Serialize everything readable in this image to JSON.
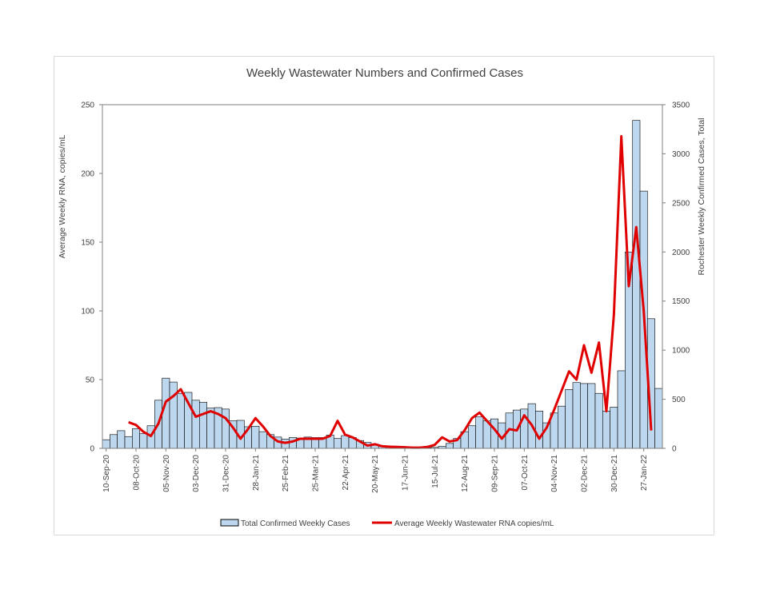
{
  "chart_data": {
    "type": "bar",
    "title": "Weekly Wastewater Numbers and Confirmed Cases",
    "ylabel": "Average Weekly RNA, copies/mL",
    "y2label": "Rochester Weekly Confirmed Cases, Total",
    "ylim": [
      0,
      250
    ],
    "y2lim": [
      0,
      3500
    ],
    "yticks": [
      "0",
      "50",
      "100",
      "150",
      "200",
      "250"
    ],
    "y2ticks": [
      "0",
      "500",
      "1000",
      "1500",
      "2000",
      "2500",
      "3000",
      "3500"
    ],
    "xtick_labels": [
      "10-Sep-20",
      "08-Oct-20",
      "05-Nov-20",
      "03-Dec-20",
      "31-Dec-20",
      "28-Jan-21",
      "25-Feb-21",
      "25-Mar-21",
      "22-Apr-21",
      "20-May-21",
      "17-Jun-21",
      "15-Jul-21",
      "12-Aug-21",
      "09-Sep-21",
      "07-Oct-21",
      "04-Nov-21",
      "02-Dec-21",
      "30-Dec-21",
      "27-Jan-22"
    ],
    "grid": false,
    "legend_position": "bottom",
    "colors": {
      "bars": "#bdd7ee",
      "bar_edge": "#000000",
      "line": "#e00000",
      "axis": "#7f7f7f"
    },
    "series": [
      {
        "name": "Total Confirmed Weekly Cases",
        "kind": "bar",
        "axis": "right",
        "values": [
          88,
          140,
          180,
          120,
          200,
          150,
          230,
          490,
          715,
          675,
          560,
          570,
          490,
          470,
          410,
          415,
          400,
          280,
          285,
          220,
          225,
          170,
          140,
          115,
          95,
          110,
          105,
          115,
          110,
          110,
          135,
          100,
          130,
          110,
          80,
          60,
          35,
          25,
          15,
          10,
          5,
          3,
          2,
          5,
          10,
          20,
          50,
          100,
          170,
          230,
          320,
          280,
          300,
          260,
          360,
          390,
          400,
          455,
          380,
          260,
          360,
          430,
          600,
          670,
          660,
          660,
          560,
          380,
          420,
          790,
          2000,
          3340,
          2620,
          1320,
          610
        ]
      },
      {
        "name": "Average Weekly Wastewater RNA copies/mL",
        "kind": "line",
        "axis": "left",
        "values": [
          null,
          null,
          null,
          19,
          17,
          12,
          9,
          18,
          34,
          38,
          43,
          33,
          23,
          25,
          27,
          25,
          22,
          15,
          7,
          14,
          22,
          16,
          9,
          5,
          4,
          5,
          7,
          7,
          7,
          7,
          9,
          20,
          10,
          8,
          5,
          2,
          3,
          1.5,
          1.2,
          1,
          0.8,
          0.5,
          0.5,
          1,
          2.5,
          8,
          5,
          6,
          13,
          22,
          26,
          20,
          14,
          7,
          14,
          13,
          24,
          17,
          7,
          15,
          28,
          42,
          56,
          50,
          75,
          55,
          77,
          27,
          97,
          227,
          118,
          161,
          100,
          13
        ]
      }
    ]
  }
}
